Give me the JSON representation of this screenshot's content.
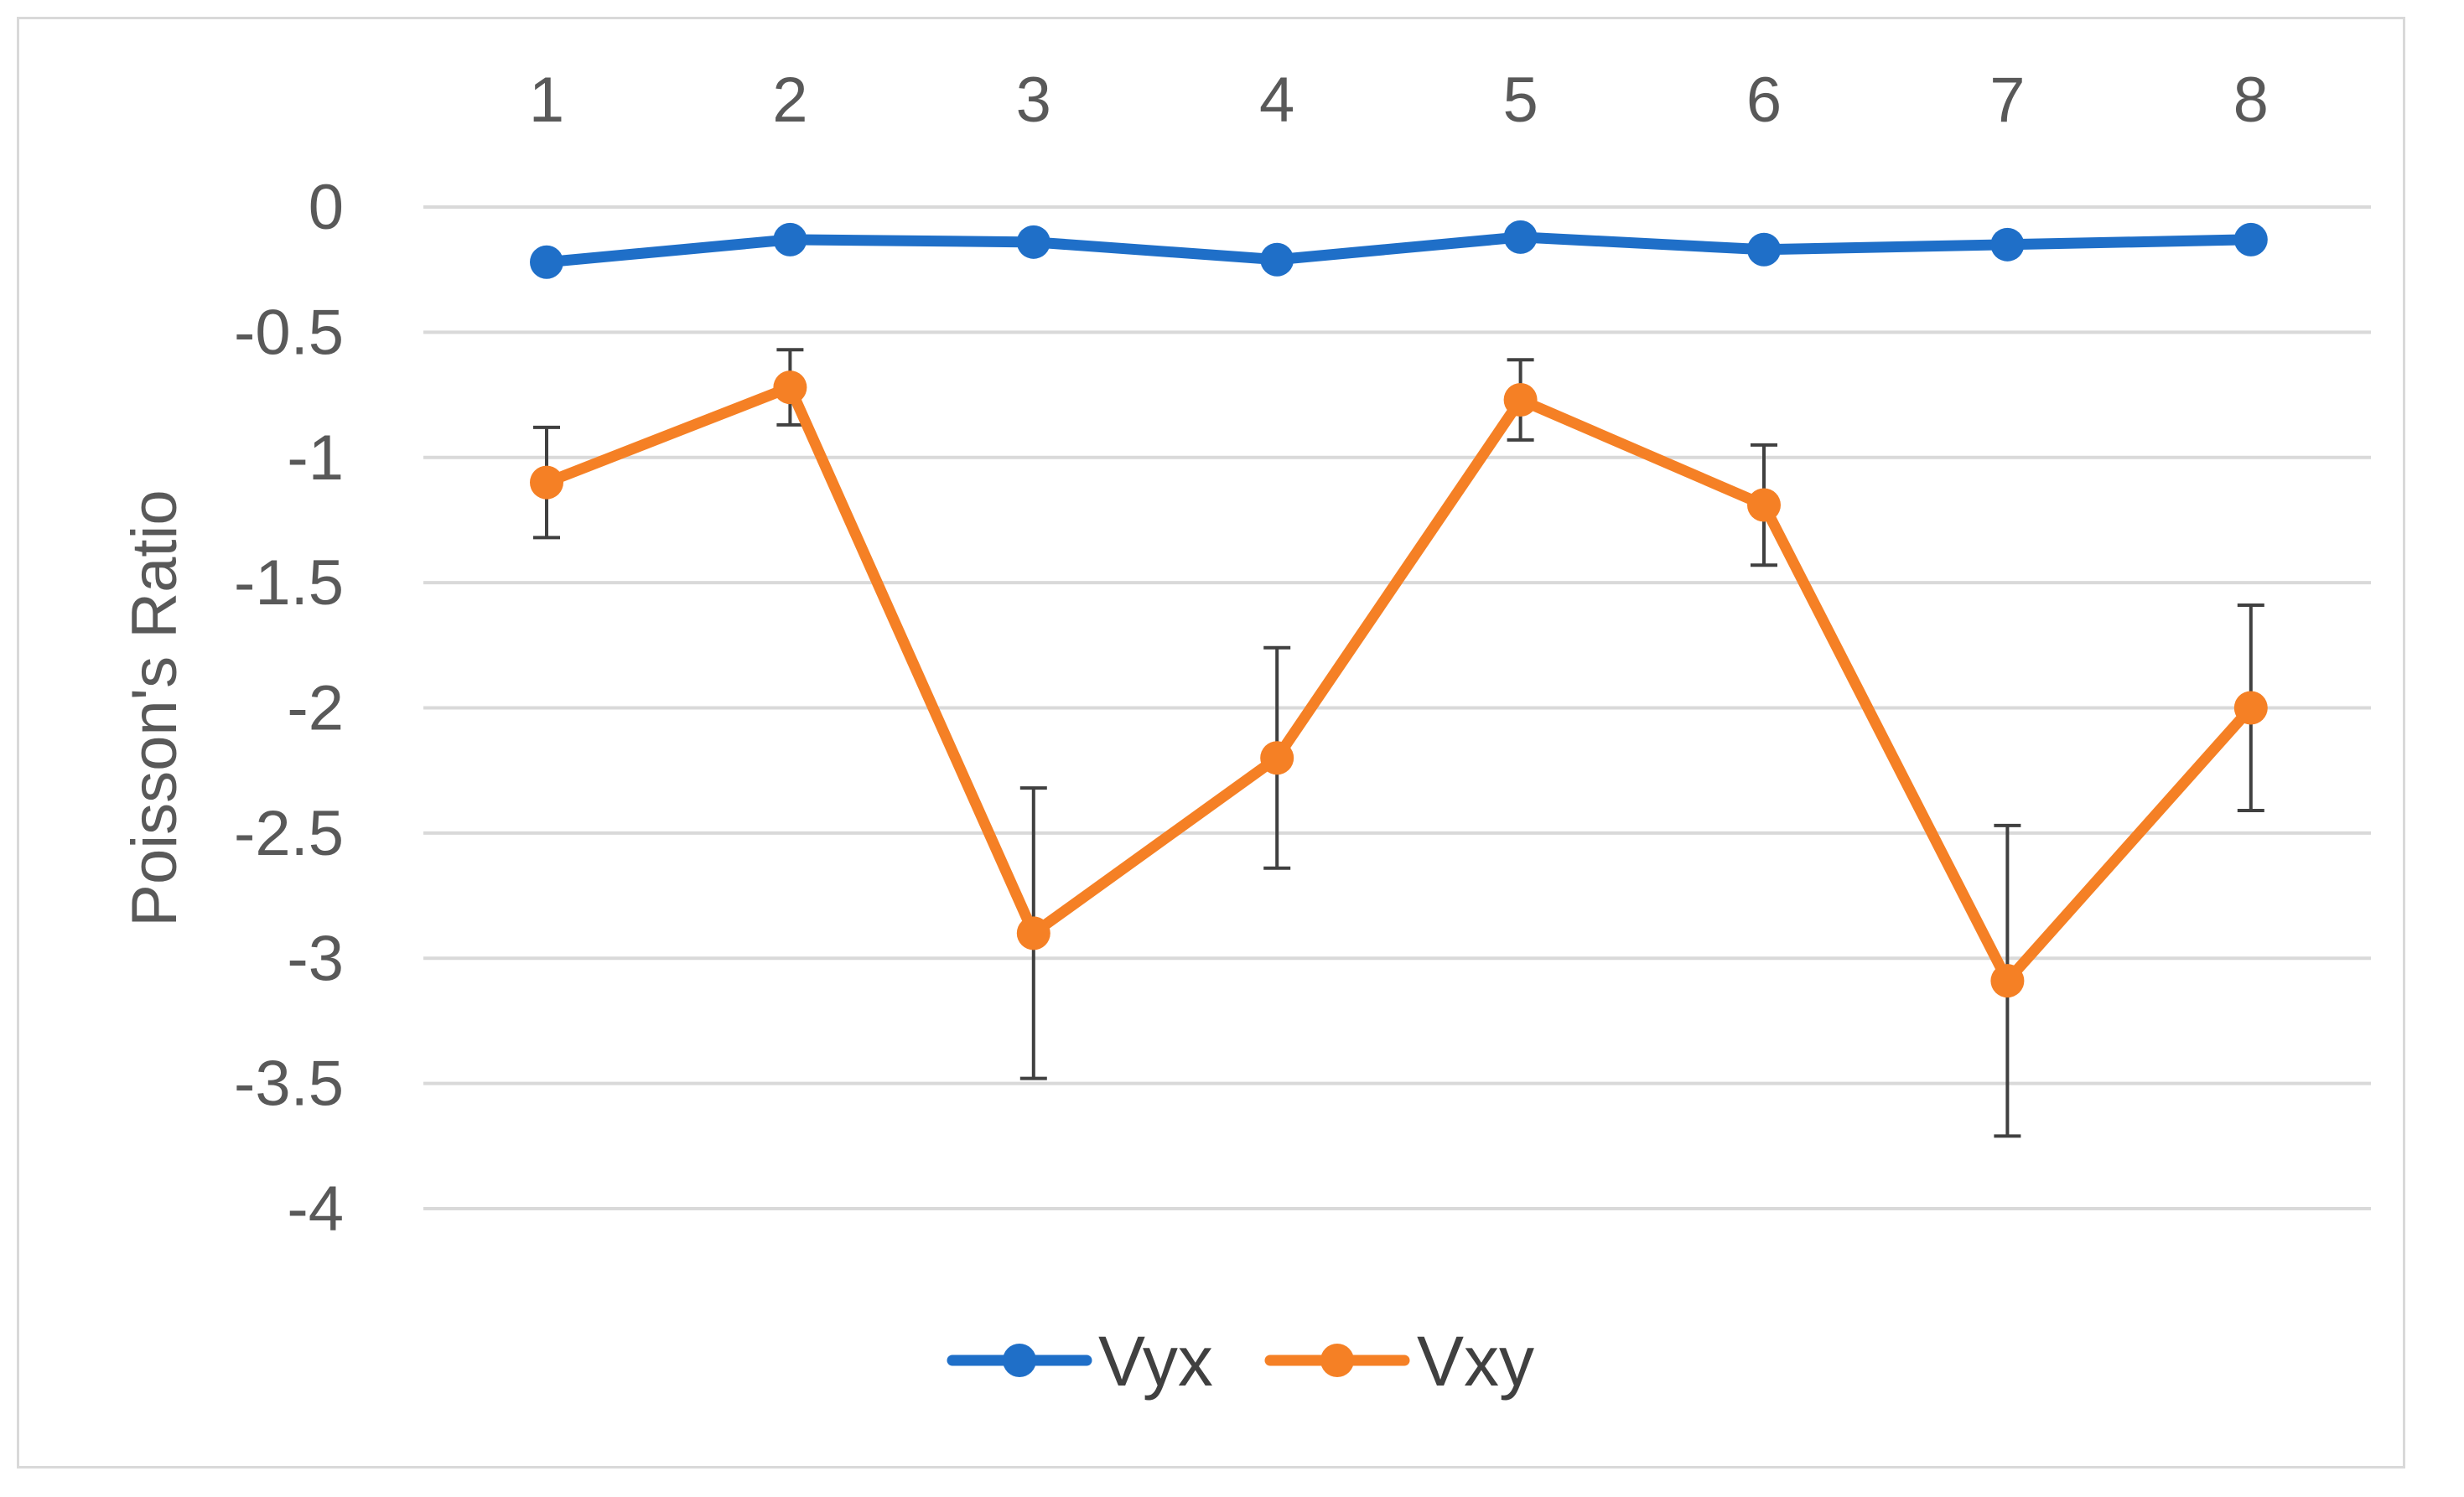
{
  "chart_data": {
    "type": "line",
    "x_axis_position": "top",
    "categories": [
      "1",
      "2",
      "3",
      "4",
      "5",
      "6",
      "7",
      "8"
    ],
    "ylabel": "Poisson's Ratio",
    "ylim": [
      -4,
      0
    ],
    "yticks": [
      0,
      -0.5,
      -1,
      -1.5,
      -2,
      -2.5,
      -3,
      -3.5,
      -4
    ],
    "ytick_labels": [
      "0",
      "-0.5",
      "-1",
      "-1.5",
      "-2",
      "-2.5",
      "-3",
      "-3.5",
      "-4"
    ],
    "grid": true,
    "legend_position": "bottom",
    "series": [
      {
        "name": "Vyx",
        "color": "#1f6fc8",
        "values": [
          -0.22,
          -0.13,
          -0.14,
          -0.21,
          -0.12,
          -0.17,
          -0.15,
          -0.13
        ]
      },
      {
        "name": "Vxy",
        "color": "#f58025",
        "values": [
          -1.1,
          -0.72,
          -2.9,
          -2.2,
          -0.77,
          -1.19,
          -3.09,
          -2.0
        ],
        "error_bars": [
          0.22,
          0.15,
          0.58,
          0.44,
          0.16,
          0.24,
          0.62,
          0.41
        ]
      }
    ]
  }
}
